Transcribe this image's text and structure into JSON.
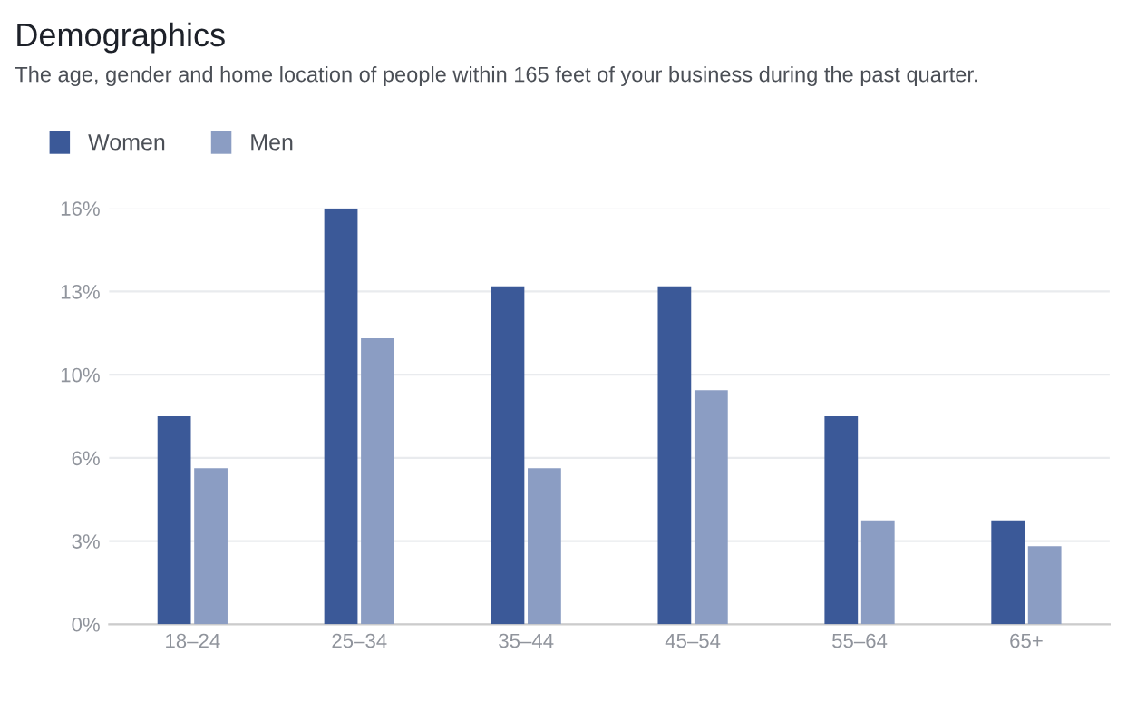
{
  "chart_data": {
    "type": "bar",
    "title": "Demographics",
    "subtitle": "The age, gender and home location of people within 165 feet of your business during the past quarter.",
    "categories": [
      "18–24",
      "25–34",
      "35–44",
      "45–54",
      "55–64",
      "65+"
    ],
    "series": [
      {
        "name": "Women",
        "color": "#3b5998",
        "values": [
          8,
          16,
          13,
          13,
          8,
          4
        ]
      },
      {
        "name": "Men",
        "color": "#8b9dc3",
        "values": [
          6,
          11,
          6,
          9,
          4,
          3
        ]
      }
    ],
    "ylim": [
      0,
      16
    ],
    "yticks": [
      {
        "value": 0,
        "label": "0%"
      },
      {
        "value": 3.2,
        "label": "3%"
      },
      {
        "value": 6.4,
        "label": "6%"
      },
      {
        "value": 9.6,
        "label": "10%"
      },
      {
        "value": 12.8,
        "label": "13%"
      },
      {
        "value": 16,
        "label": "16%"
      }
    ],
    "grid": "y",
    "legend": "top left"
  }
}
